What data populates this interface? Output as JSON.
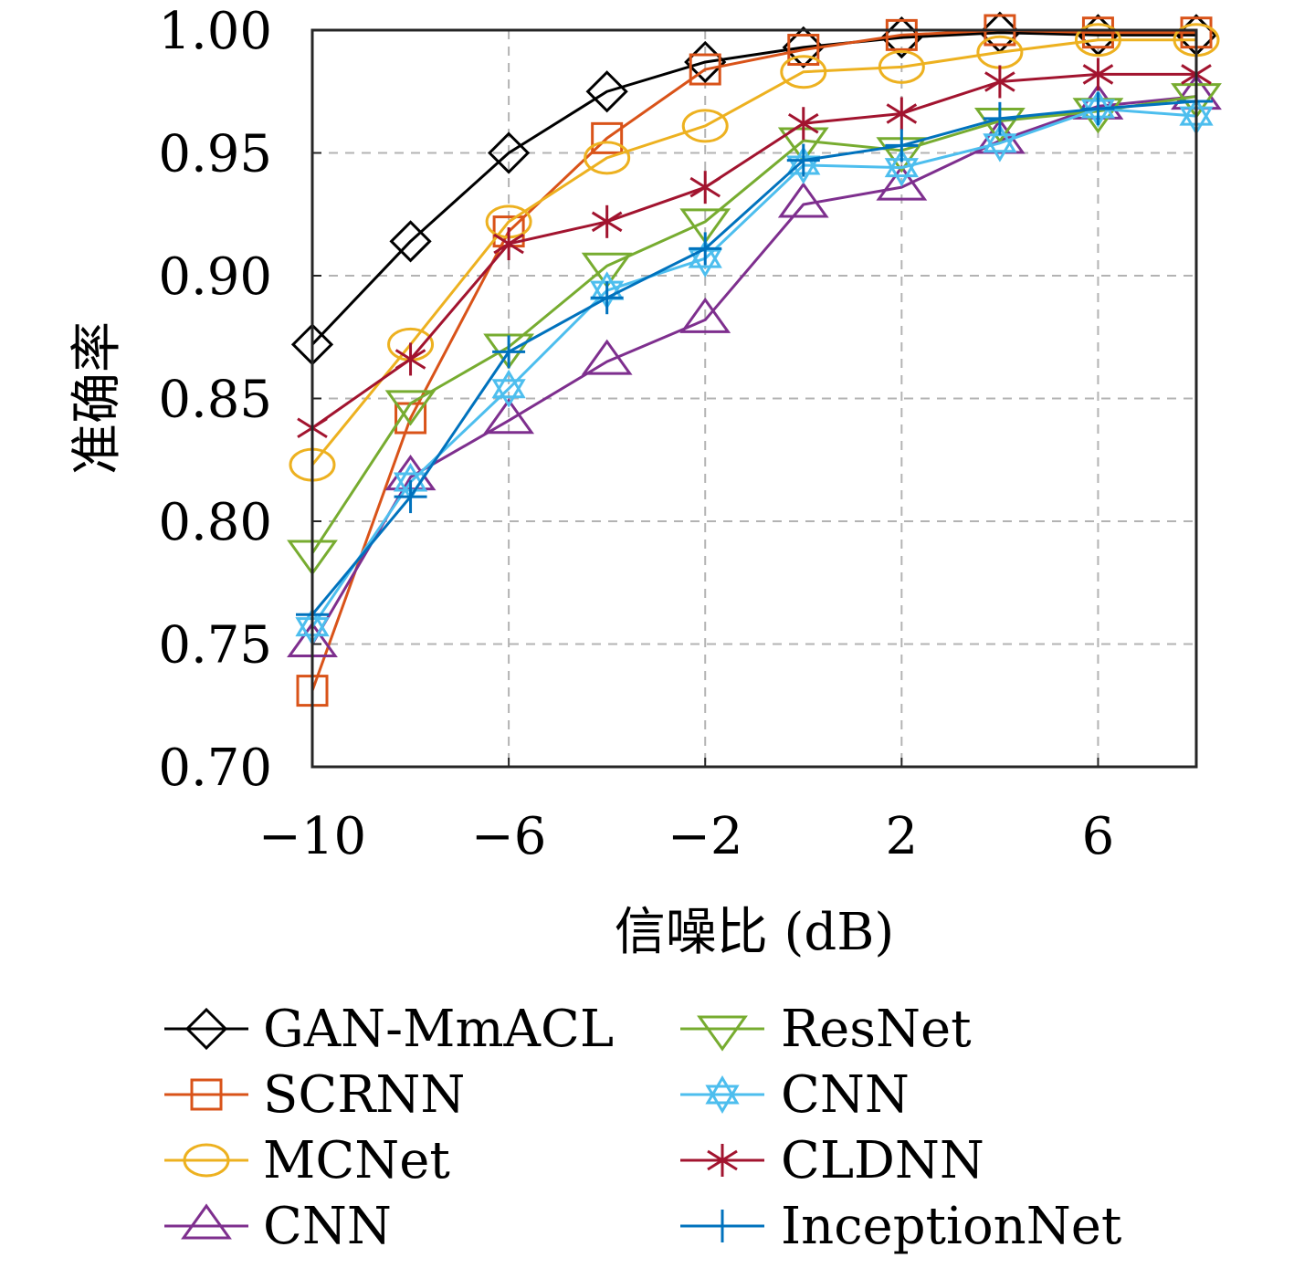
{
  "chart_data": {
    "type": "line",
    "title": "",
    "xlabel": "信噪比 (dB)",
    "ylabel": "准确率",
    "x": [
      -10,
      -8,
      -6,
      -4,
      -2,
      0,
      2,
      4,
      6,
      8
    ],
    "xlim": [
      -10,
      8
    ],
    "ylim": [
      0.7,
      1.0
    ],
    "xticks": [
      -10,
      -6,
      -2,
      2,
      6
    ],
    "xtick_labels": [
      "−10",
      "−6",
      "−2",
      "2",
      "6"
    ],
    "yticks": [
      0.7,
      0.75,
      0.8,
      0.85,
      0.9,
      0.95,
      1.0
    ],
    "ytick_labels": [
      "0.70",
      "0.75",
      "0.80",
      "0.85",
      "0.90",
      "0.95",
      "1.00"
    ],
    "grid": true,
    "legend_position": "bottom",
    "series": [
      {
        "name": "GAN-MmACL",
        "color": "#000000",
        "marker": "diamond",
        "values": [
          0.872,
          0.914,
          0.95,
          0.975,
          0.987,
          0.993,
          0.997,
          0.999,
          0.998,
          0.998
        ]
      },
      {
        "name": "SCRNN",
        "color": "#D95319",
        "marker": "square",
        "values": [
          0.731,
          0.842,
          0.918,
          0.956,
          0.984,
          0.992,
          0.998,
          1.0,
          0.999,
          0.999
        ]
      },
      {
        "name": "MCNet",
        "color": "#EDB120",
        "marker": "circle",
        "values": [
          0.823,
          0.872,
          0.922,
          0.948,
          0.961,
          0.983,
          0.985,
          0.991,
          0.996,
          0.996
        ]
      },
      {
        "name": "CNN",
        "color": "#7E2F8E",
        "marker": "triangle-up",
        "values": [
          0.75,
          0.818,
          0.841,
          0.865,
          0.882,
          0.929,
          0.936,
          0.955,
          0.969,
          0.973
        ]
      },
      {
        "name": "ResNet",
        "color": "#77AC30",
        "marker": "triangle-down",
        "values": [
          0.787,
          0.848,
          0.871,
          0.904,
          0.922,
          0.955,
          0.951,
          0.963,
          0.967,
          0.973
        ]
      },
      {
        "name": "CNN",
        "color": "#4DBEEE",
        "marker": "hexagram",
        "values": [
          0.757,
          0.816,
          0.854,
          0.894,
          0.907,
          0.945,
          0.944,
          0.954,
          0.968,
          0.965
        ]
      },
      {
        "name": "CLDNN",
        "color": "#A2142F",
        "marker": "asterisk",
        "values": [
          0.838,
          0.866,
          0.913,
          0.922,
          0.936,
          0.962,
          0.966,
          0.979,
          0.982,
          0.982
        ]
      },
      {
        "name": "InceptionNet",
        "color": "#0072BD",
        "marker": "plus",
        "values": [
          0.762,
          0.81,
          0.869,
          0.891,
          0.911,
          0.947,
          0.953,
          0.964,
          0.968,
          0.971
        ]
      }
    ]
  }
}
